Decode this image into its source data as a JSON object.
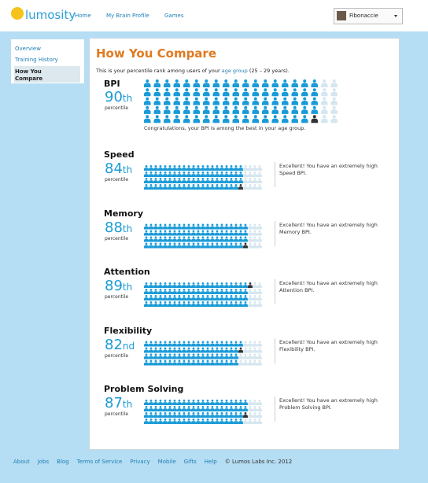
{
  "header": {
    "logo": "lumosity",
    "nav": [
      "Home",
      "My Brain Profile",
      "Games"
    ],
    "user": "Fibonaccie"
  },
  "sidebar": [
    "Overview",
    "Training History",
    "How You Compare"
  ],
  "main": {
    "title": "How You Compare",
    "intro": {
      "before": "This is your percentile rank among users of your ",
      "link": "age group",
      "after": " (25 – 29 years)."
    },
    "bpi": {
      "name": "BPI",
      "rank": 90,
      "suffix": "th",
      "unit": "percentile",
      "message": "Congratulations, your BPI is among the best in your age group."
    },
    "areas": [
      {
        "name": "Speed",
        "rank": 84,
        "suffix": "th",
        "unit": "percentile",
        "message": "Excellent! You have an extremely high Speed BPI."
      },
      {
        "name": "Memory",
        "rank": 88,
        "suffix": "th",
        "unit": "percentile",
        "message": "Excellent! You have an extremely high Memory BPI."
      },
      {
        "name": "Attention",
        "rank": 89,
        "suffix": "th",
        "unit": "percentile",
        "message": "Excellent! You have an extremely high Attention BPI."
      },
      {
        "name": "Flexibility",
        "rank": 82,
        "suffix": "nd",
        "unit": "percentile",
        "message": "Excellent! You have an extremely high Flexibility BPI."
      },
      {
        "name": "Problem Solving",
        "rank": 87,
        "suffix": "th",
        "unit": "percentile",
        "message": "Excellent! You have an extremely high Problem Solving BPI."
      }
    ]
  },
  "footer": {
    "links": [
      "About",
      "Jobs",
      "Blog",
      "Terms of Service",
      "Privacy",
      "Mobile",
      "Gifts",
      "Help"
    ],
    "copyright": "© Lumos Labs Inc. 2012"
  }
}
